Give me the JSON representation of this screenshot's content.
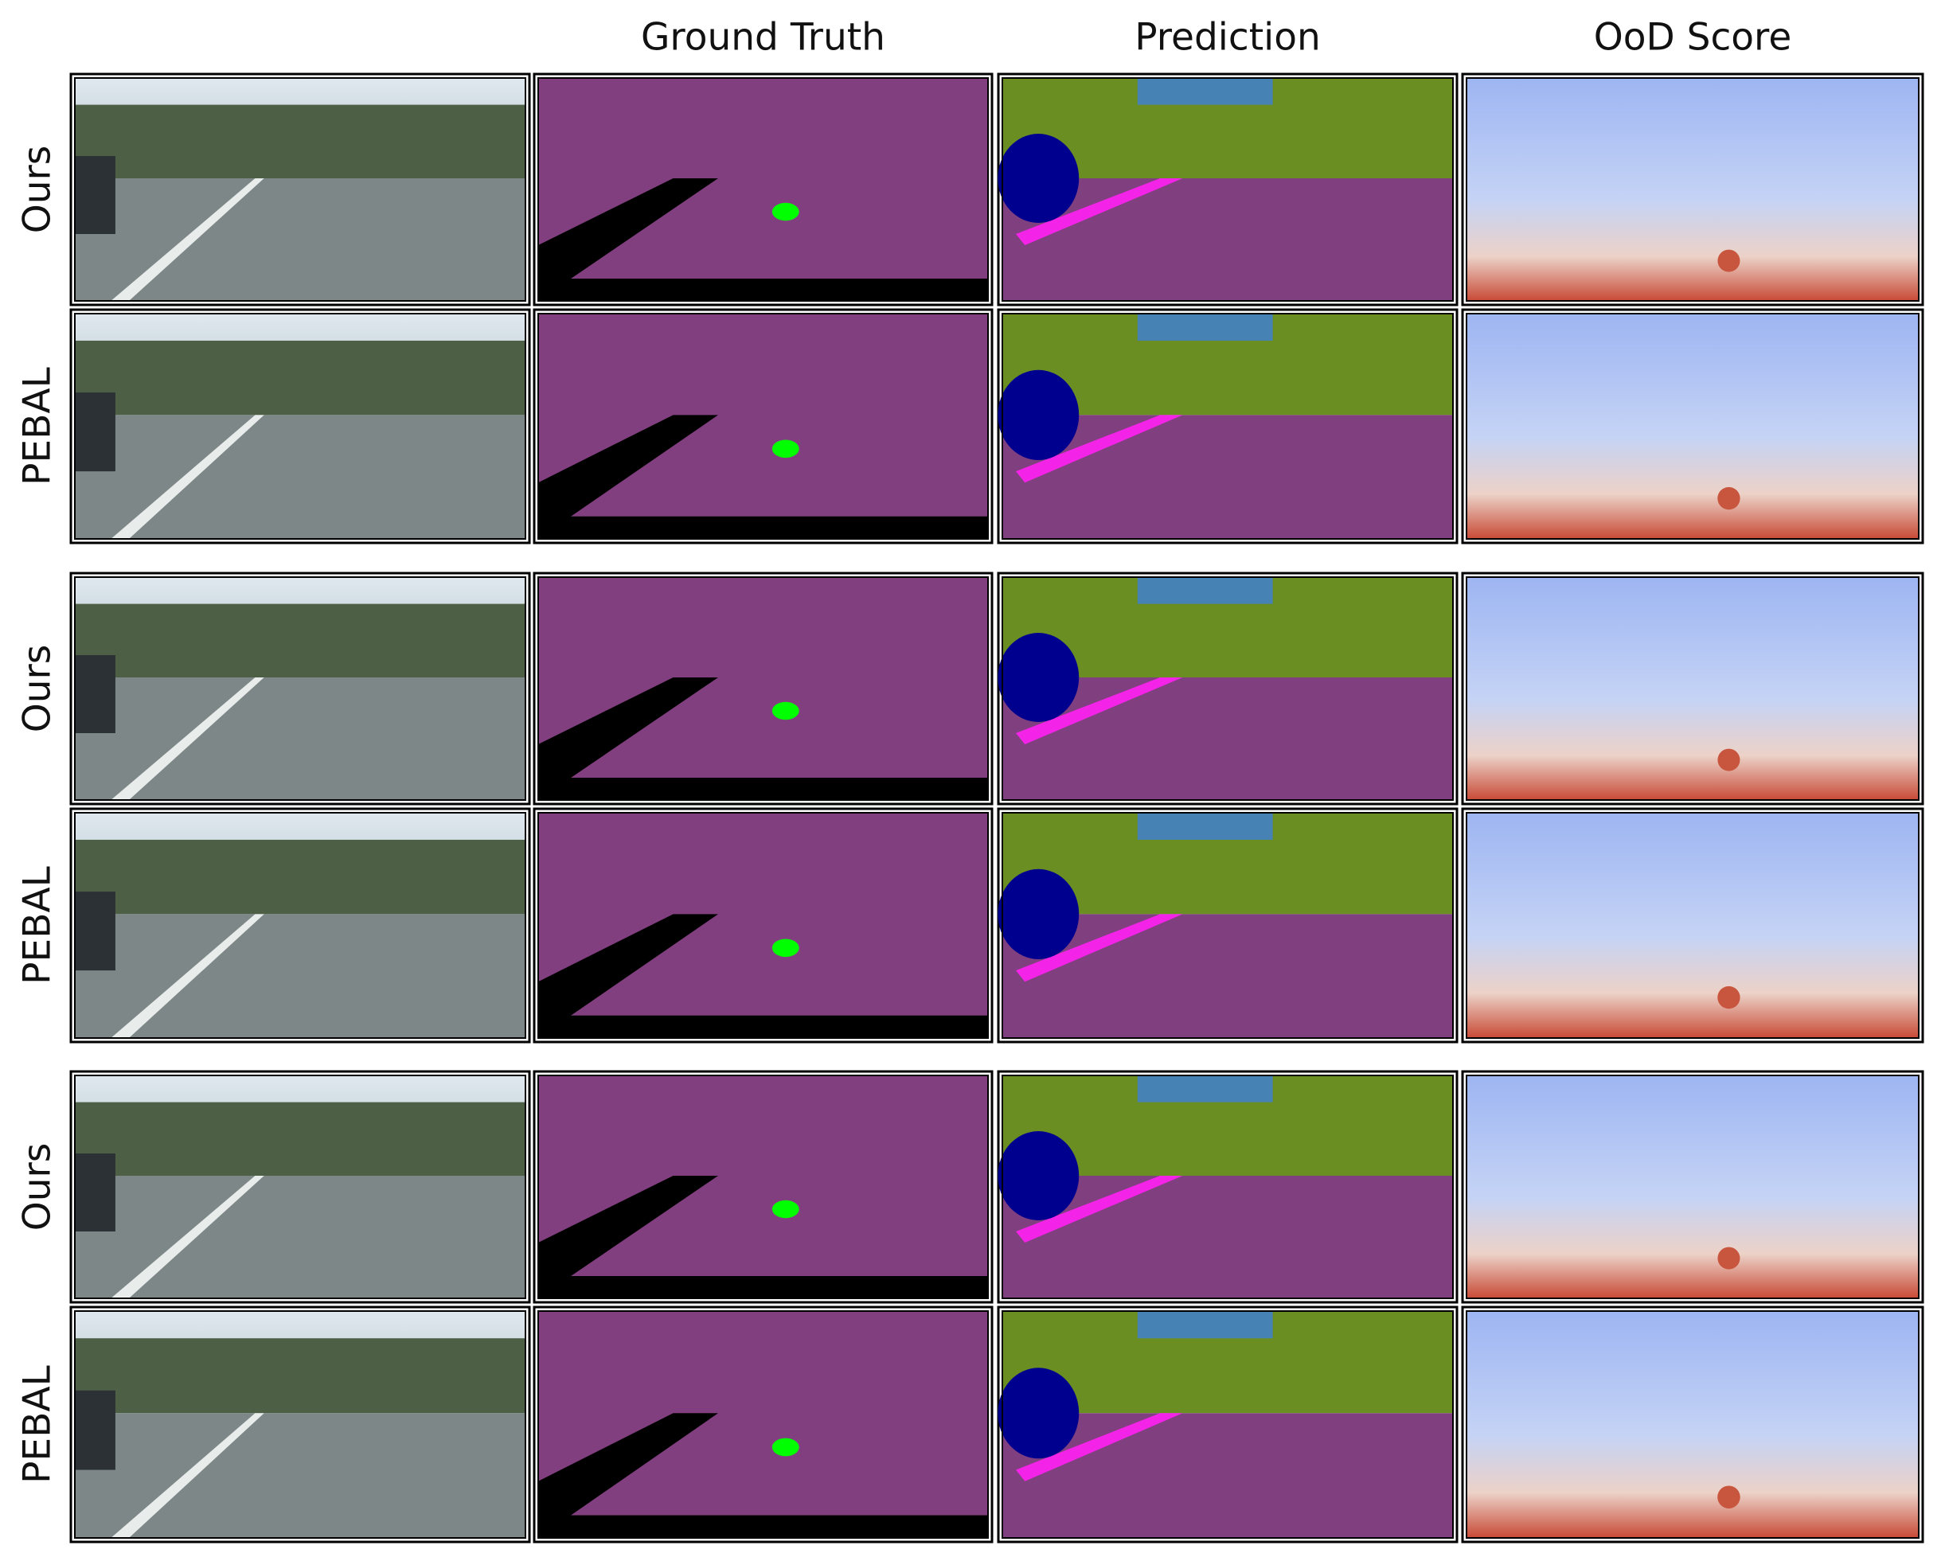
{
  "figure": {
    "column_headers": [
      "Ground Truth",
      "Prediction",
      "OoD Score"
    ],
    "row_labels": [
      "Ours",
      "PEBAL",
      "Ours",
      "PEBAL",
      "Ours",
      "PEBAL"
    ]
  }
}
